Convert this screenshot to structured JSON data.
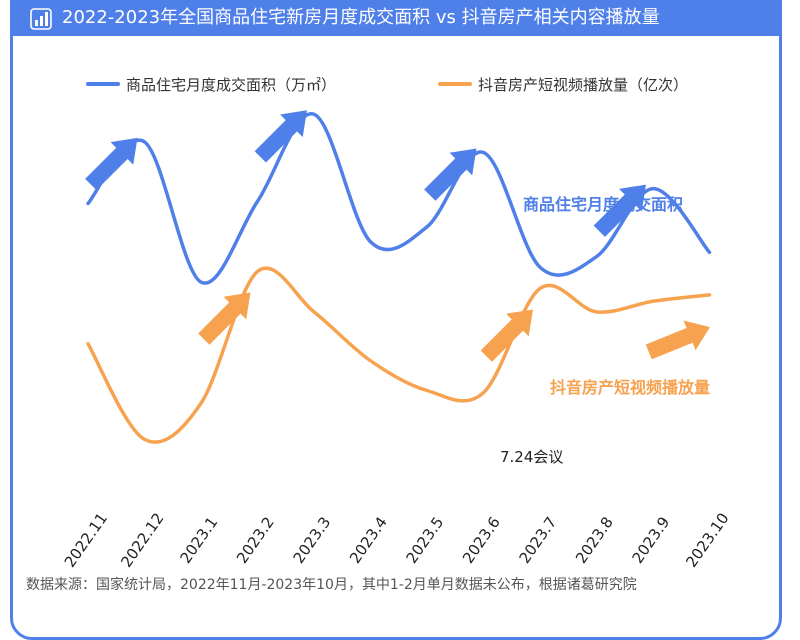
{
  "header": {
    "title": "2022-2023年全国商品住宅新房月度成交面积 vs 抖音房产相关内容播放量",
    "icon": "bar-chart-icon"
  },
  "chart_data": {
    "type": "line",
    "x": [
      "2022.11",
      "2022.12",
      "2023.1",
      "2023.2",
      "2023.3",
      "2023.4",
      "2023.5",
      "2023.6",
      "2023.7",
      "2023.8",
      "2023.9",
      "2023.10"
    ],
    "series": [
      {
        "name": "商品住宅月度成交面积（万㎡）",
        "label": "商品住宅月度成交面积",
        "color": "#4f7fe8",
        "values": [
          0.56,
          0.85,
          0.19,
          0.57,
          0.98,
          0.38,
          0.45,
          0.8,
          0.26,
          0.31,
          0.63,
          0.33
        ]
      },
      {
        "name": "抖音房产短视频播放量（亿次）",
        "label": "抖音房产短视频播放量",
        "color": "#f7a24f",
        "values": [
          -0.1,
          -0.55,
          -0.38,
          0.24,
          0.05,
          -0.18,
          -0.32,
          -0.33,
          0.16,
          0.05,
          0.1,
          0.13
        ]
      }
    ],
    "legend": "top",
    "grid": false,
    "annotations": [
      "7.24会议"
    ],
    "trend_arrows": [
      {
        "series": 0,
        "at": "2022.12"
      },
      {
        "series": 0,
        "at": "2023.3"
      },
      {
        "series": 0,
        "at": "2023.6"
      },
      {
        "series": 0,
        "at": "2023.9"
      },
      {
        "series": 1,
        "at": "2023.2"
      },
      {
        "series": 1,
        "at": "2023.7"
      },
      {
        "series": 1,
        "at": "2023.10"
      }
    ]
  },
  "footer": {
    "source": "数据来源：国家统计局，2022年11月-2023年10月，其中1-2月单月数据未公布，根据诸葛研究院"
  }
}
